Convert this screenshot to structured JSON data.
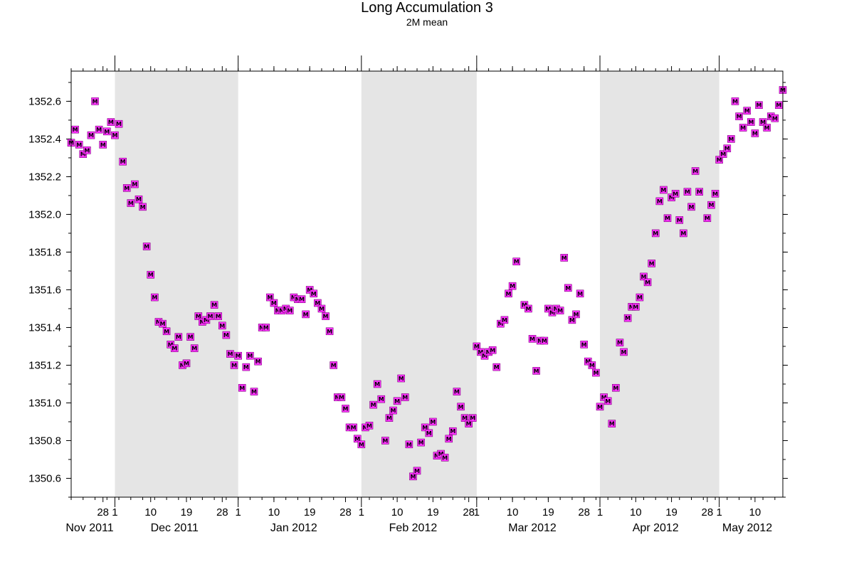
{
  "chart_data": {
    "type": "scatter",
    "title": "Long Accumulation 3",
    "subtitle": "2M mean",
    "xlabel": "",
    "ylabel": "",
    "x_type": "date",
    "xlim": [
      "2011-11-20",
      "2012-05-17"
    ],
    "ylim": [
      1350.5,
      1352.76
    ],
    "y_ticks": [
      "1350.6",
      "1350.8",
      "1351.0",
      "1351.2",
      "1351.4",
      "1351.6",
      "1351.8",
      "1352.0",
      "1352.2",
      "1352.4",
      "1352.6"
    ],
    "x_day_ticks": [
      {
        "date": "2011-11-28",
        "label": "28"
      },
      {
        "date": "2011-12-01",
        "label": "1"
      },
      {
        "date": "2011-12-10",
        "label": "10"
      },
      {
        "date": "2011-12-19",
        "label": "19"
      },
      {
        "date": "2011-12-28",
        "label": "28"
      },
      {
        "date": "2012-01-01",
        "label": "1"
      },
      {
        "date": "2012-01-10",
        "label": "10"
      },
      {
        "date": "2012-01-19",
        "label": "19"
      },
      {
        "date": "2012-01-28",
        "label": "28"
      },
      {
        "date": "2012-02-01",
        "label": "1"
      },
      {
        "date": "2012-02-10",
        "label": "10"
      },
      {
        "date": "2012-02-19",
        "label": "19"
      },
      {
        "date": "2012-02-28",
        "label": "28"
      },
      {
        "date": "2012-03-01",
        "label": "1"
      },
      {
        "date": "2012-03-10",
        "label": "10"
      },
      {
        "date": "2012-03-19",
        "label": "19"
      },
      {
        "date": "2012-03-28",
        "label": "28"
      },
      {
        "date": "2012-04-01",
        "label": "1"
      },
      {
        "date": "2012-04-10",
        "label": "10"
      },
      {
        "date": "2012-04-19",
        "label": "19"
      },
      {
        "date": "2012-04-28",
        "label": "28"
      },
      {
        "date": "2012-05-01",
        "label": "1"
      },
      {
        "date": "2012-05-10",
        "label": "10"
      }
    ],
    "x_month_labels": [
      {
        "date": "2011-11-23",
        "label": "Nov 2011"
      },
      {
        "date": "2011-12-16",
        "label": "Dec 2011"
      },
      {
        "date": "2012-01-15",
        "label": "Jan 2012"
      },
      {
        "date": "2012-02-14",
        "label": "Feb 2012"
      },
      {
        "date": "2012-03-15",
        "label": "Mar 2012"
      },
      {
        "date": "2012-04-15",
        "label": "Apr 2012"
      },
      {
        "date": "2012-05-10",
        "label": "May 2012"
      }
    ],
    "shaded_months": [
      {
        "start": "2011-12-01",
        "end": "2012-01-01"
      },
      {
        "start": "2012-02-01",
        "end": "2012-03-01"
      },
      {
        "start": "2012-04-01",
        "end": "2012-05-01"
      }
    ],
    "grid": false,
    "marker_label": "M",
    "colors": {
      "marker": "#ff33ff",
      "shade": "#e5e5e5",
      "axis": "#000000",
      "background": "#ffffff"
    },
    "series": [
      {
        "points": [
          {
            "x": "2011-11-20",
            "y": 1352.38
          },
          {
            "x": "2011-11-21",
            "y": 1352.45
          },
          {
            "x": "2011-11-22",
            "y": 1352.37
          },
          {
            "x": "2011-11-23",
            "y": 1352.32
          },
          {
            "x": "2011-11-24",
            "y": 1352.34
          },
          {
            "x": "2011-11-25",
            "y": 1352.42
          },
          {
            "x": "2011-11-26",
            "y": 1352.6
          },
          {
            "x": "2011-11-27",
            "y": 1352.45
          },
          {
            "x": "2011-11-28",
            "y": 1352.37
          },
          {
            "x": "2011-11-29",
            "y": 1352.44
          },
          {
            "x": "2011-11-30",
            "y": 1352.49
          },
          {
            "x": "2011-12-01",
            "y": 1352.42
          },
          {
            "x": "2011-12-02",
            "y": 1352.48
          },
          {
            "x": "2011-12-03",
            "y": 1352.28
          },
          {
            "x": "2011-12-04",
            "y": 1352.14
          },
          {
            "x": "2011-12-05",
            "y": 1352.06
          },
          {
            "x": "2011-12-06",
            "y": 1352.16
          },
          {
            "x": "2011-12-07",
            "y": 1352.08
          },
          {
            "x": "2011-12-08",
            "y": 1352.04
          },
          {
            "x": "2011-12-09",
            "y": 1351.83
          },
          {
            "x": "2011-12-10",
            "y": 1351.68
          },
          {
            "x": "2011-12-11",
            "y": 1351.56
          },
          {
            "x": "2011-12-12",
            "y": 1351.43
          },
          {
            "x": "2011-12-13",
            "y": 1351.42
          },
          {
            "x": "2011-12-14",
            "y": 1351.38
          },
          {
            "x": "2011-12-15",
            "y": 1351.31
          },
          {
            "x": "2011-12-16",
            "y": 1351.29
          },
          {
            "x": "2011-12-17",
            "y": 1351.35
          },
          {
            "x": "2011-12-18",
            "y": 1351.2
          },
          {
            "x": "2011-12-19",
            "y": 1351.21
          },
          {
            "x": "2011-12-20",
            "y": 1351.35
          },
          {
            "x": "2011-12-21",
            "y": 1351.29
          },
          {
            "x": "2011-12-22",
            "y": 1351.46
          },
          {
            "x": "2011-12-23",
            "y": 1351.43
          },
          {
            "x": "2011-12-24",
            "y": 1351.44
          },
          {
            "x": "2011-12-25",
            "y": 1351.46
          },
          {
            "x": "2011-12-26",
            "y": 1351.52
          },
          {
            "x": "2011-12-27",
            "y": 1351.46
          },
          {
            "x": "2011-12-28",
            "y": 1351.41
          },
          {
            "x": "2011-12-29",
            "y": 1351.36
          },
          {
            "x": "2011-12-30",
            "y": 1351.26
          },
          {
            "x": "2011-12-31",
            "y": 1351.2
          },
          {
            "x": "2012-01-01",
            "y": 1351.25
          },
          {
            "x": "2012-01-02",
            "y": 1351.08
          },
          {
            "x": "2012-01-03",
            "y": 1351.19
          },
          {
            "x": "2012-01-04",
            "y": 1351.25
          },
          {
            "x": "2012-01-05",
            "y": 1351.06
          },
          {
            "x": "2012-01-06",
            "y": 1351.22
          },
          {
            "x": "2012-01-07",
            "y": 1351.4
          },
          {
            "x": "2012-01-08",
            "y": 1351.4
          },
          {
            "x": "2012-01-09",
            "y": 1351.56
          },
          {
            "x": "2012-01-10",
            "y": 1351.53
          },
          {
            "x": "2012-01-11",
            "y": 1351.49
          },
          {
            "x": "2012-01-12",
            "y": 1351.49
          },
          {
            "x": "2012-01-13",
            "y": 1351.5
          },
          {
            "x": "2012-01-14",
            "y": 1351.49
          },
          {
            "x": "2012-01-15",
            "y": 1351.56
          },
          {
            "x": "2012-01-16",
            "y": 1351.55
          },
          {
            "x": "2012-01-17",
            "y": 1351.55
          },
          {
            "x": "2012-01-18",
            "y": 1351.47
          },
          {
            "x": "2012-01-19",
            "y": 1351.6
          },
          {
            "x": "2012-01-20",
            "y": 1351.58
          },
          {
            "x": "2012-01-21",
            "y": 1351.53
          },
          {
            "x": "2012-01-22",
            "y": 1351.5
          },
          {
            "x": "2012-01-23",
            "y": 1351.46
          },
          {
            "x": "2012-01-24",
            "y": 1351.38
          },
          {
            "x": "2012-01-25",
            "y": 1351.2
          },
          {
            "x": "2012-01-26",
            "y": 1351.03
          },
          {
            "x": "2012-01-27",
            "y": 1351.03
          },
          {
            "x": "2012-01-28",
            "y": 1350.97
          },
          {
            "x": "2012-01-29",
            "y": 1350.87
          },
          {
            "x": "2012-01-30",
            "y": 1350.87
          },
          {
            "x": "2012-01-31",
            "y": 1350.81
          },
          {
            "x": "2012-02-01",
            "y": 1350.78
          },
          {
            "x": "2012-02-02",
            "y": 1350.87
          },
          {
            "x": "2012-02-03",
            "y": 1350.88
          },
          {
            "x": "2012-02-04",
            "y": 1350.99
          },
          {
            "x": "2012-02-05",
            "y": 1351.1
          },
          {
            "x": "2012-02-06",
            "y": 1351.02
          },
          {
            "x": "2012-02-07",
            "y": 1350.8
          },
          {
            "x": "2012-02-08",
            "y": 1350.92
          },
          {
            "x": "2012-02-09",
            "y": 1350.96
          },
          {
            "x": "2012-02-10",
            "y": 1351.01
          },
          {
            "x": "2012-02-11",
            "y": 1351.13
          },
          {
            "x": "2012-02-12",
            "y": 1351.03
          },
          {
            "x": "2012-02-13",
            "y": 1350.78
          },
          {
            "x": "2012-02-14",
            "y": 1350.61
          },
          {
            "x": "2012-02-15",
            "y": 1350.64
          },
          {
            "x": "2012-02-16",
            "y": 1350.79
          },
          {
            "x": "2012-02-17",
            "y": 1350.87
          },
          {
            "x": "2012-02-18",
            "y": 1350.84
          },
          {
            "x": "2012-02-19",
            "y": 1350.9
          },
          {
            "x": "2012-02-20",
            "y": 1350.72
          },
          {
            "x": "2012-02-21",
            "y": 1350.73
          },
          {
            "x": "2012-02-22",
            "y": 1350.71
          },
          {
            "x": "2012-02-23",
            "y": 1350.81
          },
          {
            "x": "2012-02-24",
            "y": 1350.85
          },
          {
            "x": "2012-02-25",
            "y": 1351.06
          },
          {
            "x": "2012-02-26",
            "y": 1350.98
          },
          {
            "x": "2012-02-27",
            "y": 1350.92
          },
          {
            "x": "2012-02-28",
            "y": 1350.89
          },
          {
            "x": "2012-02-29",
            "y": 1350.92
          },
          {
            "x": "2012-03-01",
            "y": 1351.3
          },
          {
            "x": "2012-03-02",
            "y": 1351.27
          },
          {
            "x": "2012-03-03",
            "y": 1351.25
          },
          {
            "x": "2012-03-04",
            "y": 1351.27
          },
          {
            "x": "2012-03-05",
            "y": 1351.28
          },
          {
            "x": "2012-03-06",
            "y": 1351.19
          },
          {
            "x": "2012-03-07",
            "y": 1351.42
          },
          {
            "x": "2012-03-08",
            "y": 1351.44
          },
          {
            "x": "2012-03-09",
            "y": 1351.58
          },
          {
            "x": "2012-03-10",
            "y": 1351.62
          },
          {
            "x": "2012-03-11",
            "y": 1351.75
          },
          {
            "x": "2012-03-13",
            "y": 1351.52
          },
          {
            "x": "2012-03-14",
            "y": 1351.5
          },
          {
            "x": "2012-03-15",
            "y": 1351.34
          },
          {
            "x": "2012-03-16",
            "y": 1351.17
          },
          {
            "x": "2012-03-17",
            "y": 1351.33
          },
          {
            "x": "2012-03-18",
            "y": 1351.33
          },
          {
            "x": "2012-03-19",
            "y": 1351.5
          },
          {
            "x": "2012-03-20",
            "y": 1351.48
          },
          {
            "x": "2012-03-21",
            "y": 1351.5
          },
          {
            "x": "2012-03-22",
            "y": 1351.49
          },
          {
            "x": "2012-03-23",
            "y": 1351.77
          },
          {
            "x": "2012-03-24",
            "y": 1351.61
          },
          {
            "x": "2012-03-25",
            "y": 1351.44
          },
          {
            "x": "2012-03-26",
            "y": 1351.47
          },
          {
            "x": "2012-03-27",
            "y": 1351.58
          },
          {
            "x": "2012-03-28",
            "y": 1351.31
          },
          {
            "x": "2012-03-29",
            "y": 1351.22
          },
          {
            "x": "2012-03-30",
            "y": 1351.2
          },
          {
            "x": "2012-03-31",
            "y": 1351.16
          },
          {
            "x": "2012-04-01",
            "y": 1350.98
          },
          {
            "x": "2012-04-02",
            "y": 1351.03
          },
          {
            "x": "2012-04-03",
            "y": 1351.01
          },
          {
            "x": "2012-04-04",
            "y": 1350.89
          },
          {
            "x": "2012-04-05",
            "y": 1351.08
          },
          {
            "x": "2012-04-06",
            "y": 1351.32
          },
          {
            "x": "2012-04-07",
            "y": 1351.27
          },
          {
            "x": "2012-04-08",
            "y": 1351.45
          },
          {
            "x": "2012-04-09",
            "y": 1351.51
          },
          {
            "x": "2012-04-10",
            "y": 1351.51
          },
          {
            "x": "2012-04-11",
            "y": 1351.56
          },
          {
            "x": "2012-04-12",
            "y": 1351.67
          },
          {
            "x": "2012-04-13",
            "y": 1351.64
          },
          {
            "x": "2012-04-14",
            "y": 1351.74
          },
          {
            "x": "2012-04-15",
            "y": 1351.9
          },
          {
            "x": "2012-04-16",
            "y": 1352.07
          },
          {
            "x": "2012-04-17",
            "y": 1352.13
          },
          {
            "x": "2012-04-18",
            "y": 1351.98
          },
          {
            "x": "2012-04-19",
            "y": 1352.09
          },
          {
            "x": "2012-04-20",
            "y": 1352.11
          },
          {
            "x": "2012-04-21",
            "y": 1351.97
          },
          {
            "x": "2012-04-22",
            "y": 1351.9
          },
          {
            "x": "2012-04-23",
            "y": 1352.12
          },
          {
            "x": "2012-04-24",
            "y": 1352.04
          },
          {
            "x": "2012-04-25",
            "y": 1352.23
          },
          {
            "x": "2012-04-26",
            "y": 1352.12
          },
          {
            "x": "2012-04-28",
            "y": 1351.98
          },
          {
            "x": "2012-04-29",
            "y": 1352.05
          },
          {
            "x": "2012-04-30",
            "y": 1352.11
          },
          {
            "x": "2012-05-01",
            "y": 1352.29
          },
          {
            "x": "2012-05-02",
            "y": 1352.32
          },
          {
            "x": "2012-05-03",
            "y": 1352.35
          },
          {
            "x": "2012-05-04",
            "y": 1352.4
          },
          {
            "x": "2012-05-05",
            "y": 1352.6
          },
          {
            "x": "2012-05-06",
            "y": 1352.52
          },
          {
            "x": "2012-05-07",
            "y": 1352.46
          },
          {
            "x": "2012-05-08",
            "y": 1352.55
          },
          {
            "x": "2012-05-09",
            "y": 1352.49
          },
          {
            "x": "2012-05-10",
            "y": 1352.43
          },
          {
            "x": "2012-05-11",
            "y": 1352.58
          },
          {
            "x": "2012-05-12",
            "y": 1352.49
          },
          {
            "x": "2012-05-13",
            "y": 1352.46
          },
          {
            "x": "2012-05-14",
            "y": 1352.52
          },
          {
            "x": "2012-05-15",
            "y": 1352.51
          },
          {
            "x": "2012-05-16",
            "y": 1352.58
          },
          {
            "x": "2012-05-17",
            "y": 1352.66
          }
        ]
      }
    ]
  }
}
